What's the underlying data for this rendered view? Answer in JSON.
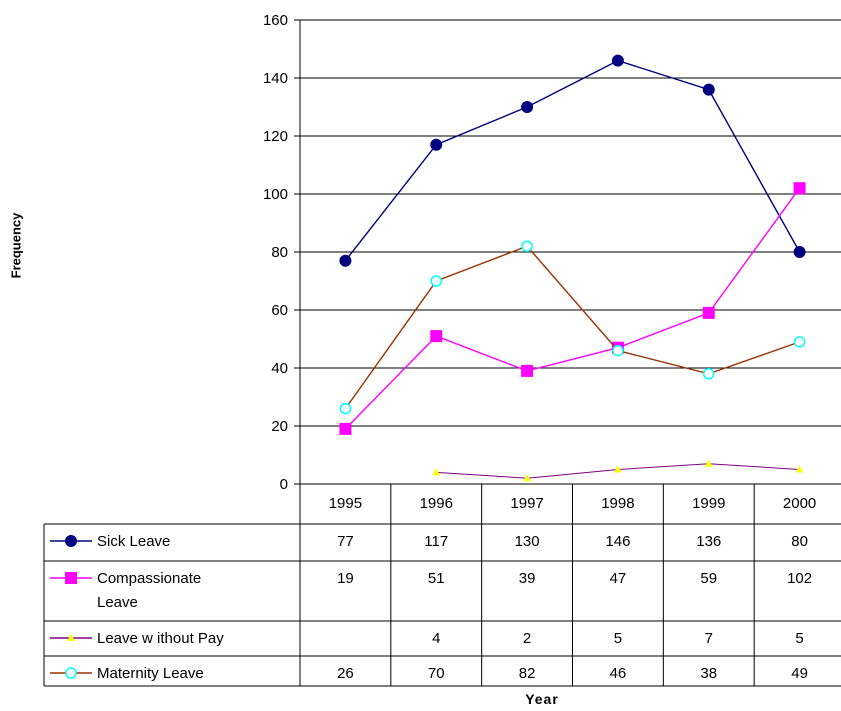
{
  "chart_data": {
    "type": "line",
    "title": "",
    "xlabel": "Year",
    "ylabel": "Frequency",
    "ylim": [
      0,
      160
    ],
    "yticks": [
      "0",
      "20",
      "40",
      "60",
      "80",
      "100",
      "120",
      "140",
      "160"
    ],
    "categories": [
      "1995",
      "1996",
      "1997",
      "1998",
      "1999",
      "2000"
    ],
    "grid": true,
    "legend": "data-table",
    "series": [
      {
        "name": "Sick Leave",
        "name_lines": [
          "Sick Leave"
        ],
        "marker": "circle",
        "color": "#000080",
        "markerColor": "#000080",
        "values": [
          77,
          117,
          130,
          146,
          136,
          80
        ],
        "labels": [
          "77",
          "117",
          "130",
          "146",
          "136",
          "80"
        ]
      },
      {
        "name": "Compassionate Leave",
        "name_lines": [
          "Compassionate",
          "Leave"
        ],
        "marker": "square",
        "color": "#FF00FF",
        "markerColor": "#FF00FF",
        "values": [
          19,
          51,
          39,
          47,
          59,
          102
        ],
        "labels": [
          "19",
          "51",
          "39",
          "47",
          "59",
          "102"
        ]
      },
      {
        "name": "Leave w ithout Pay",
        "name_lines": [
          "Leave w ithout Pay"
        ],
        "marker": "triangle",
        "color": "#800080",
        "markerColor": "#FFFF00",
        "values": [
          null,
          4,
          2,
          5,
          7,
          5
        ],
        "labels": [
          "",
          "4",
          "2",
          "5",
          "7",
          "5"
        ]
      },
      {
        "name": "Maternity Leave",
        "name_lines": [
          "Maternity Leave"
        ],
        "marker": "open-circle",
        "color": "#993300",
        "markerColor": "#00FFFF",
        "values": [
          26,
          70,
          82,
          46,
          38,
          49
        ],
        "labels": [
          "26",
          "70",
          "82",
          "46",
          "38",
          "49"
        ]
      }
    ]
  }
}
